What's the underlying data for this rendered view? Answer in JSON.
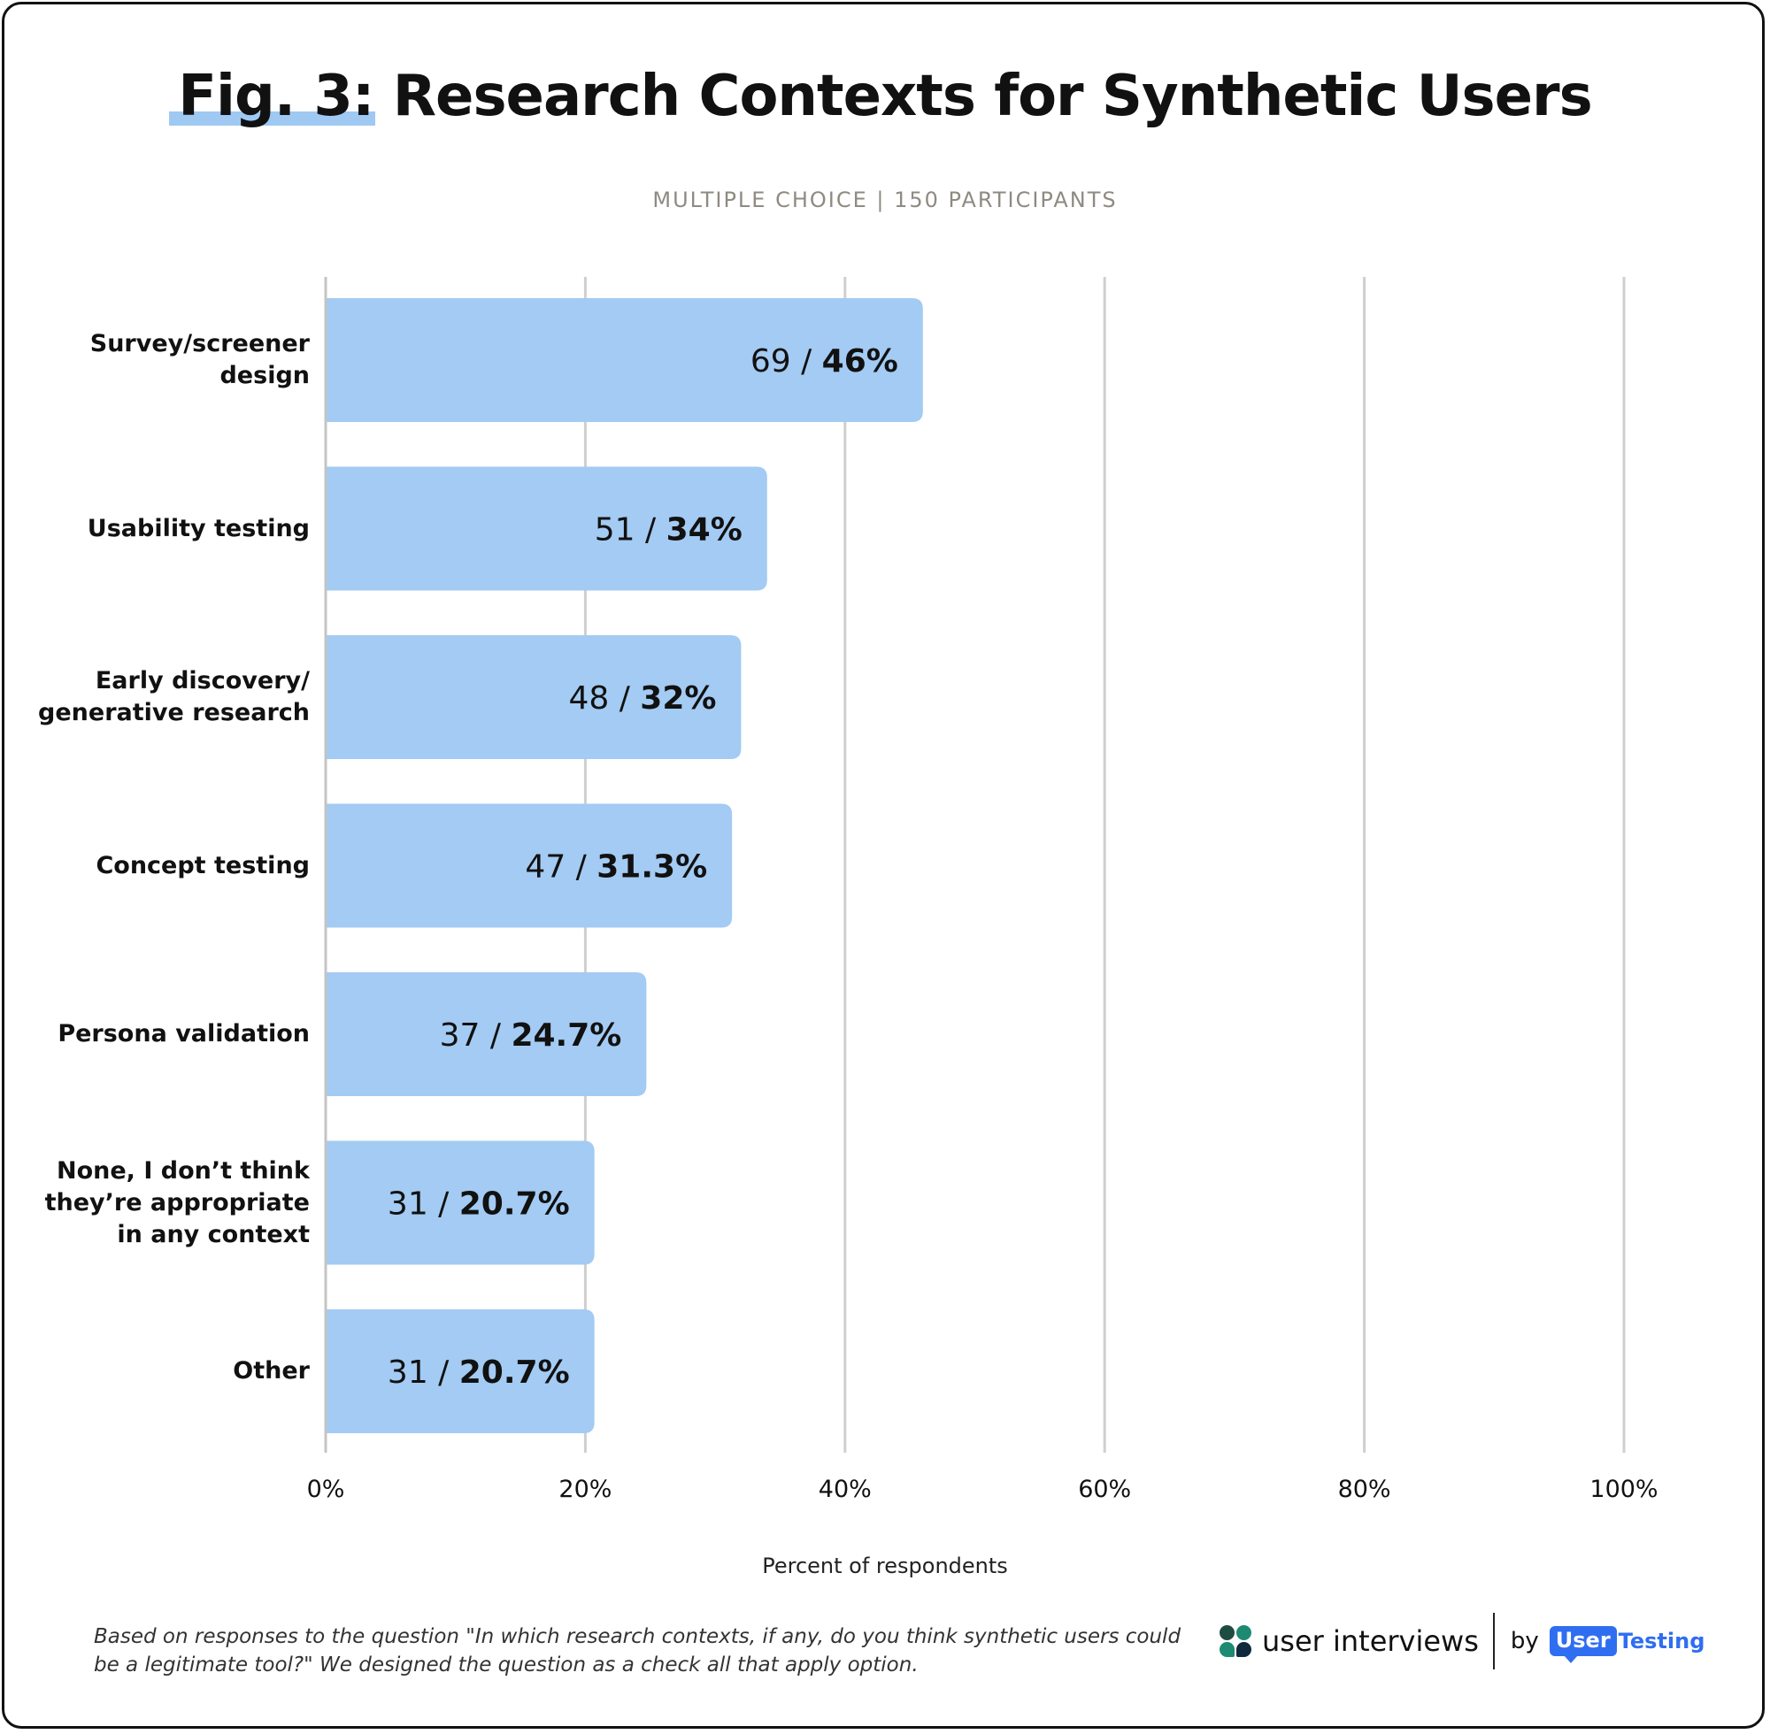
{
  "title": {
    "prefix": "Fig. 3:",
    "main": "Research Contexts for Synthetic Users"
  },
  "subtitle": "MULTIPLE CHOICE | 150 PARTICIPANTS",
  "colors": {
    "bar": "#a3cbf3",
    "grid": "#cfcfcf",
    "highlight": "#9fc9f2",
    "brand_blue": "#2f6ef0"
  },
  "chart_data": {
    "type": "bar",
    "orientation": "horizontal",
    "categories": [
      "Survey/screener\ndesign",
      "Usability testing",
      "Early discovery/\ngenerative research",
      "Concept testing",
      "Persona validation",
      "None, I don’t think\nthey’re appropriate\nin any context",
      "Other"
    ],
    "counts": [
      69,
      51,
      48,
      47,
      37,
      31,
      31
    ],
    "values": [
      46,
      34,
      32,
      31.3,
      24.7,
      20.7,
      20.7
    ],
    "value_labels": [
      "46%",
      "34%",
      "32%",
      "31.3%",
      "24.7%",
      "20.7%",
      "20.7%"
    ],
    "xlim": [
      0,
      100
    ],
    "xticks": [
      0,
      20,
      40,
      60,
      80,
      100
    ],
    "xtick_labels": [
      "0%",
      "20%",
      "40%",
      "60%",
      "80%",
      "100%"
    ],
    "xlabel": "Percent of respondents",
    "grid": true
  },
  "footnote": "Based on responses to the question \"In which research contexts, if any, do you think synthetic users could be a legitimate tool?\" We designed the question as a check all that apply option.",
  "brand": {
    "user_interviews": "user interviews",
    "by": "by",
    "usertesting_user": "User",
    "usertesting_testing": "Testing"
  }
}
